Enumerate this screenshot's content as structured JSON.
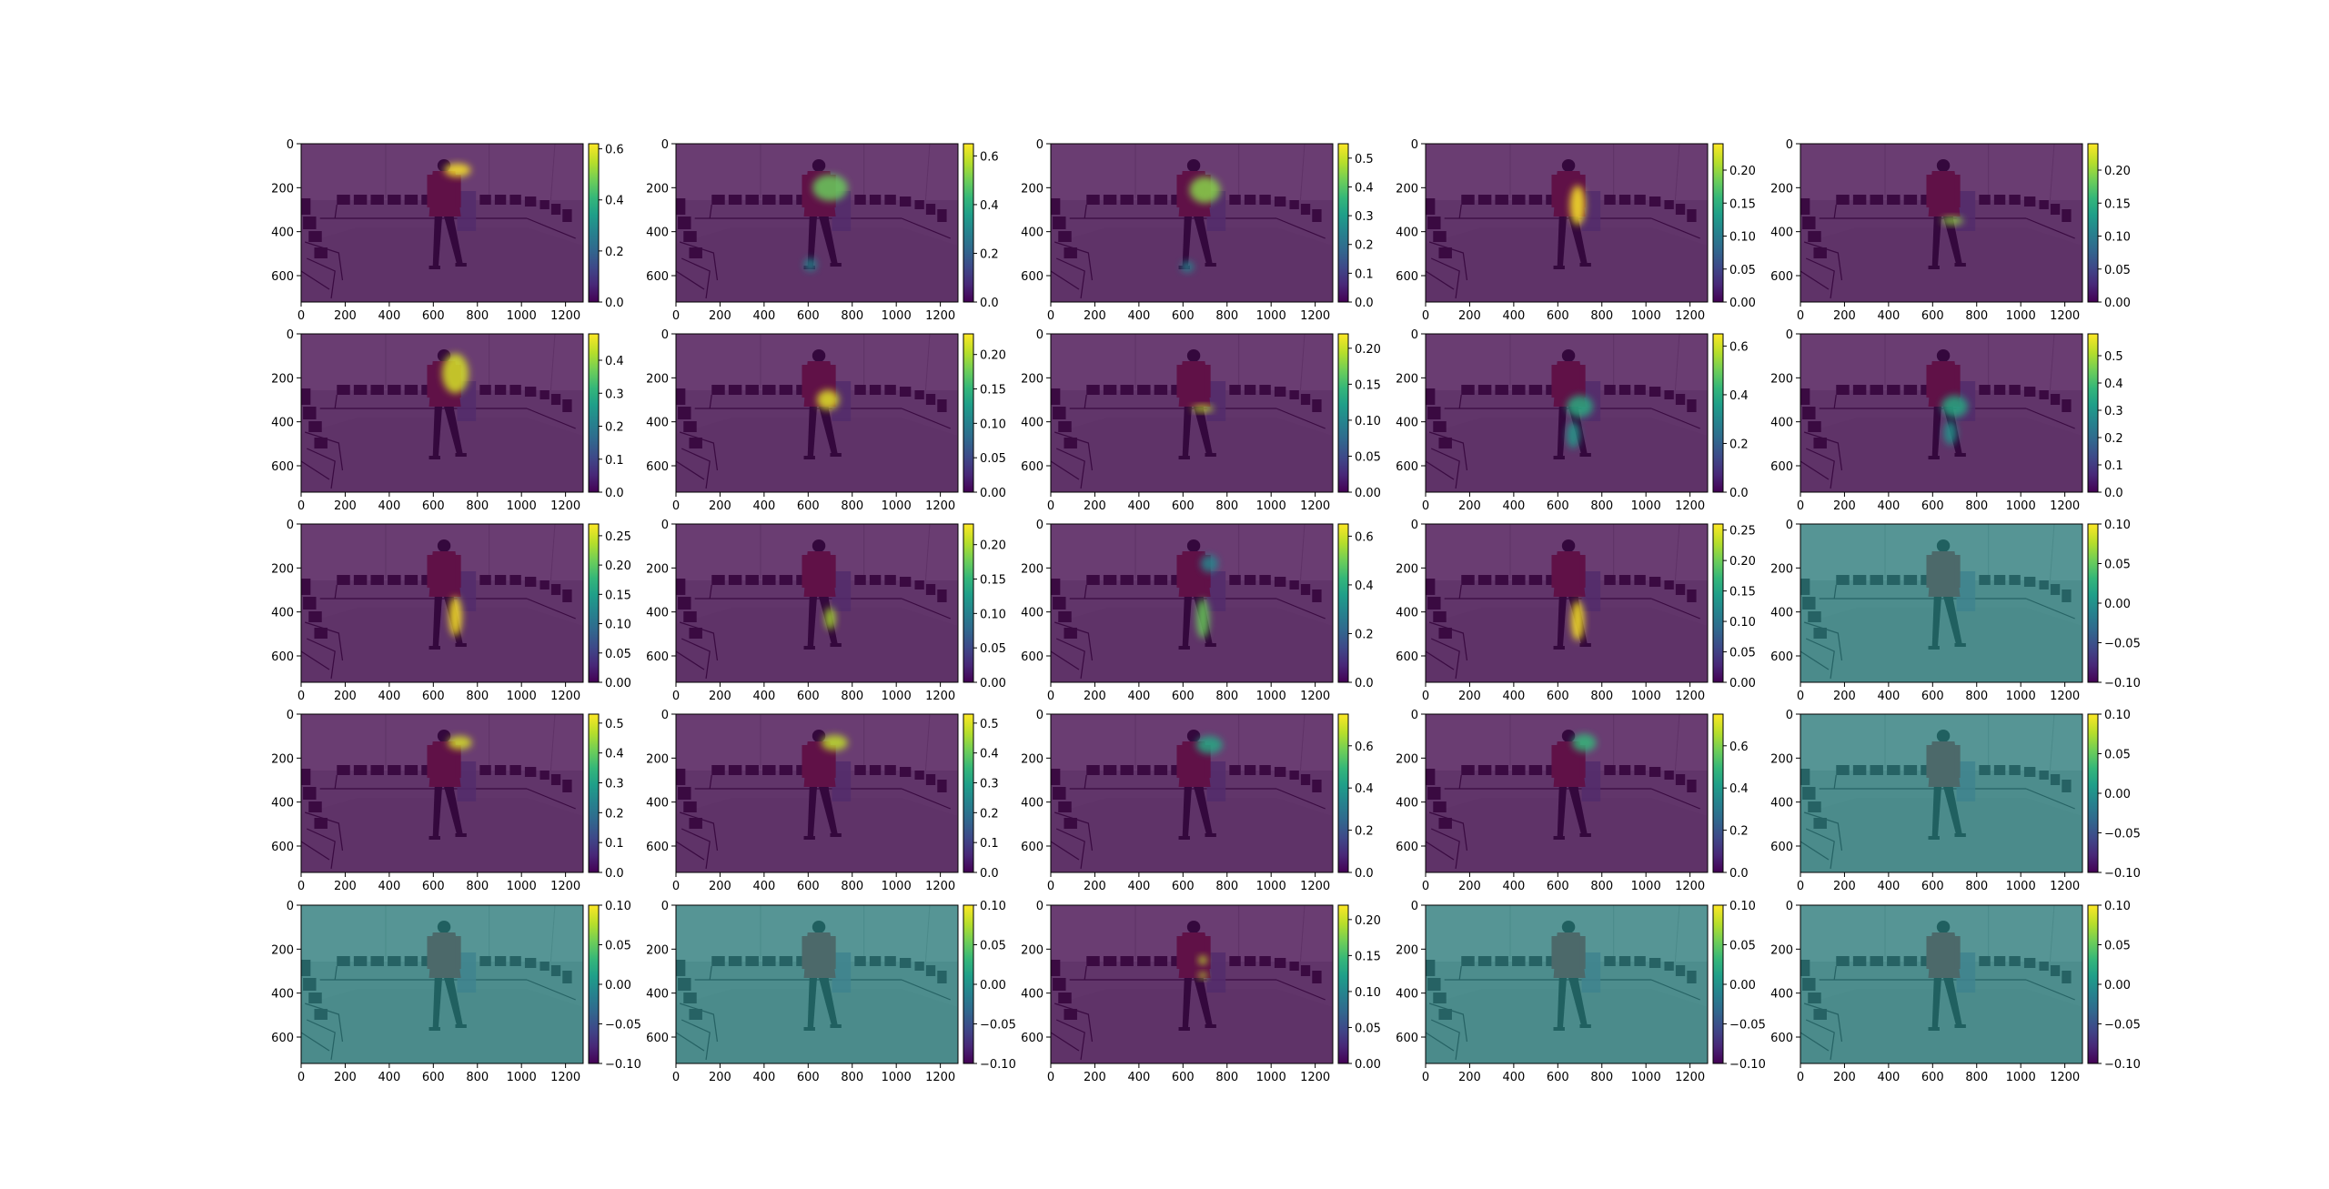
{
  "figure": {
    "layout": "5x5 grid of heatmap overlays on a photo (person walking in a room with chairs)",
    "colormap": "viridis",
    "viridis_stops": [
      "#440154",
      "#482878",
      "#3e4989",
      "#31688e",
      "#26828e",
      "#1f9e89",
      "#35b779",
      "#6ece58",
      "#b5de2b",
      "#fde725"
    ]
  },
  "chart_data": [
    {
      "type": "heatmap",
      "x_ticks": [
        "0",
        "200",
        "400",
        "600",
        "800",
        "1000",
        "1200"
      ],
      "y_ticks": [
        "0",
        "200",
        "400",
        "600"
      ],
      "xlim": [
        0,
        1280
      ],
      "ylim": [
        720,
        0
      ],
      "colorbar_ticks": [
        "0.0",
        "0.2",
        "0.4",
        "0.6"
      ],
      "colorbar_range": [
        0,
        0.62
      ],
      "blobs": [
        {
          "x": 710,
          "y": 120,
          "rx": 60,
          "ry": 30,
          "v": 0.62
        }
      ]
    },
    {
      "type": "heatmap",
      "x_ticks": [
        "0",
        "200",
        "400",
        "600",
        "800",
        "1000",
        "1200"
      ],
      "y_ticks": [
        "0",
        "200",
        "400",
        "600"
      ],
      "xlim": [
        0,
        1280
      ],
      "ylim": [
        720,
        0
      ],
      "colorbar_ticks": [
        "0.0",
        "0.2",
        "0.4",
        "0.6"
      ],
      "colorbar_range": [
        0,
        0.65
      ],
      "blobs": [
        {
          "x": 700,
          "y": 200,
          "rx": 80,
          "ry": 60,
          "v": 0.5
        },
        {
          "x": 610,
          "y": 550,
          "rx": 30,
          "ry": 30,
          "v": 0.3
        }
      ]
    },
    {
      "type": "heatmap",
      "x_ticks": [
        "0",
        "200",
        "400",
        "600",
        "800",
        "1000",
        "1200"
      ],
      "y_ticks": [
        "0",
        "200",
        "400",
        "600"
      ],
      "xlim": [
        0,
        1280
      ],
      "ylim": [
        720,
        0
      ],
      "colorbar_ticks": [
        "0.0",
        "0.1",
        "0.2",
        "0.3",
        "0.4",
        "0.5"
      ],
      "colorbar_range": [
        0,
        0.55
      ],
      "blobs": [
        {
          "x": 700,
          "y": 210,
          "rx": 70,
          "ry": 60,
          "v": 0.45
        },
        {
          "x": 620,
          "y": 560,
          "rx": 30,
          "ry": 25,
          "v": 0.25
        }
      ]
    },
    {
      "type": "heatmap",
      "x_ticks": [
        "0",
        "200",
        "400",
        "600",
        "800",
        "1000",
        "1200"
      ],
      "y_ticks": [
        "0",
        "200",
        "400",
        "600"
      ],
      "xlim": [
        0,
        1280
      ],
      "ylim": [
        720,
        0
      ],
      "colorbar_ticks": [
        "0.00",
        "0.05",
        "0.10",
        "0.15",
        "0.20"
      ],
      "colorbar_range": [
        0,
        0.24
      ],
      "blobs": [
        {
          "x": 690,
          "y": 280,
          "rx": 35,
          "ry": 90,
          "v": 0.24
        }
      ]
    },
    {
      "type": "heatmap",
      "x_ticks": [
        "0",
        "200",
        "400",
        "600",
        "800",
        "1000",
        "1200"
      ],
      "y_ticks": [
        "0",
        "200",
        "400",
        "600"
      ],
      "xlim": [
        0,
        1280
      ],
      "ylim": [
        720,
        0
      ],
      "colorbar_ticks": [
        "0.00",
        "0.05",
        "0.10",
        "0.15",
        "0.20"
      ],
      "colorbar_range": [
        0,
        0.24
      ],
      "blobs": [
        {
          "x": 690,
          "y": 350,
          "rx": 50,
          "ry": 18,
          "v": 0.2
        }
      ]
    },
    {
      "type": "heatmap",
      "x_ticks": [
        "0",
        "200",
        "400",
        "600",
        "800",
        "1000",
        "1200"
      ],
      "y_ticks": [
        "0",
        "200",
        "400",
        "600"
      ],
      "xlim": [
        0,
        1280
      ],
      "ylim": [
        720,
        0
      ],
      "colorbar_ticks": [
        "0.0",
        "0.1",
        "0.2",
        "0.3",
        "0.4"
      ],
      "colorbar_range": [
        0,
        0.48
      ],
      "blobs": [
        {
          "x": 700,
          "y": 180,
          "rx": 60,
          "ry": 90,
          "v": 0.45
        }
      ]
    },
    {
      "type": "heatmap",
      "x_ticks": [
        "0",
        "200",
        "400",
        "600",
        "800",
        "1000",
        "1200"
      ],
      "y_ticks": [
        "0",
        "200",
        "400",
        "600"
      ],
      "xlim": [
        0,
        1280
      ],
      "ylim": [
        720,
        0
      ],
      "colorbar_ticks": [
        "0.00",
        "0.05",
        "0.10",
        "0.15",
        "0.20"
      ],
      "colorbar_range": [
        0,
        0.23
      ],
      "blobs": [
        {
          "x": 690,
          "y": 300,
          "rx": 50,
          "ry": 45,
          "v": 0.22
        }
      ]
    },
    {
      "type": "heatmap",
      "x_ticks": [
        "0",
        "200",
        "400",
        "600",
        "800",
        "1000",
        "1200"
      ],
      "y_ticks": [
        "0",
        "200",
        "400",
        "600"
      ],
      "xlim": [
        0,
        1280
      ],
      "ylim": [
        720,
        0
      ],
      "colorbar_ticks": [
        "0.00",
        "0.05",
        "0.10",
        "0.15",
        "0.20"
      ],
      "colorbar_range": [
        0,
        0.22
      ],
      "blobs": [
        {
          "x": 690,
          "y": 340,
          "rx": 50,
          "ry": 15,
          "v": 0.2
        }
      ]
    },
    {
      "type": "heatmap",
      "x_ticks": [
        "0",
        "200",
        "400",
        "600",
        "800",
        "1000",
        "1200"
      ],
      "y_ticks": [
        "0",
        "200",
        "400",
        "600"
      ],
      "xlim": [
        0,
        1280
      ],
      "ylim": [
        720,
        0
      ],
      "colorbar_ticks": [
        "0.0",
        "0.2",
        "0.4",
        "0.6"
      ],
      "colorbar_range": [
        0,
        0.65
      ],
      "blobs": [
        {
          "x": 700,
          "y": 330,
          "rx": 60,
          "ry": 50,
          "v": 0.4
        },
        {
          "x": 670,
          "y": 460,
          "rx": 30,
          "ry": 60,
          "v": 0.35
        }
      ]
    },
    {
      "type": "heatmap",
      "x_ticks": [
        "0",
        "200",
        "400",
        "600",
        "800",
        "1000",
        "1200"
      ],
      "y_ticks": [
        "0",
        "200",
        "400",
        "600"
      ],
      "xlim": [
        0,
        1280
      ],
      "ylim": [
        720,
        0
      ],
      "colorbar_ticks": [
        "0.0",
        "0.1",
        "0.2",
        "0.3",
        "0.4",
        "0.5"
      ],
      "colorbar_range": [
        0,
        0.58
      ],
      "blobs": [
        {
          "x": 700,
          "y": 330,
          "rx": 60,
          "ry": 50,
          "v": 0.35
        },
        {
          "x": 680,
          "y": 450,
          "rx": 30,
          "ry": 55,
          "v": 0.3
        }
      ]
    },
    {
      "type": "heatmap",
      "x_ticks": [
        "0",
        "200",
        "400",
        "600",
        "800",
        "1000",
        "1200"
      ],
      "y_ticks": [
        "0",
        "200",
        "400",
        "600"
      ],
      "xlim": [
        0,
        1280
      ],
      "ylim": [
        720,
        0
      ],
      "colorbar_ticks": [
        "0.00",
        "0.05",
        "0.10",
        "0.15",
        "0.20",
        "0.25"
      ],
      "colorbar_range": [
        0,
        0.27
      ],
      "blobs": [
        {
          "x": 700,
          "y": 420,
          "rx": 30,
          "ry": 90,
          "v": 0.27
        }
      ]
    },
    {
      "type": "heatmap",
      "x_ticks": [
        "0",
        "200",
        "400",
        "600",
        "800",
        "1000",
        "1200"
      ],
      "y_ticks": [
        "0",
        "200",
        "400",
        "600"
      ],
      "xlim": [
        0,
        1280
      ],
      "ylim": [
        720,
        0
      ],
      "colorbar_ticks": [
        "0.00",
        "0.05",
        "0.10",
        "0.15",
        "0.20"
      ],
      "colorbar_range": [
        0,
        0.23
      ],
      "blobs": [
        {
          "x": 700,
          "y": 430,
          "rx": 25,
          "ry": 50,
          "v": 0.2
        }
      ]
    },
    {
      "type": "heatmap",
      "x_ticks": [
        "0",
        "200",
        "400",
        "600",
        "800",
        "1000",
        "1200"
      ],
      "y_ticks": [
        "0",
        "200",
        "400",
        "600"
      ],
      "xlim": [
        0,
        1280
      ],
      "ylim": [
        720,
        0
      ],
      "colorbar_ticks": [
        "0.0",
        "0.2",
        "0.4",
        "0.6"
      ],
      "colorbar_range": [
        0,
        0.65
      ],
      "blobs": [
        {
          "x": 720,
          "y": 180,
          "rx": 40,
          "ry": 40,
          "v": 0.3
        },
        {
          "x": 690,
          "y": 430,
          "rx": 30,
          "ry": 90,
          "v": 0.5
        }
      ]
    },
    {
      "type": "heatmap",
      "x_ticks": [
        "0",
        "200",
        "400",
        "600",
        "800",
        "1000",
        "1200"
      ],
      "y_ticks": [
        "0",
        "200",
        "400",
        "600"
      ],
      "xlim": [
        0,
        1280
      ],
      "ylim": [
        720,
        0
      ],
      "colorbar_ticks": [
        "0.00",
        "0.05",
        "0.10",
        "0.15",
        "0.20",
        "0.25"
      ],
      "colorbar_range": [
        0,
        0.26
      ],
      "blobs": [
        {
          "x": 690,
          "y": 440,
          "rx": 30,
          "ry": 90,
          "v": 0.26
        }
      ]
    },
    {
      "type": "heatmap",
      "x_ticks": [
        "0",
        "200",
        "400",
        "600",
        "800",
        "1000",
        "1200"
      ],
      "y_ticks": [
        "0",
        "200",
        "400",
        "600"
      ],
      "xlim": [
        0,
        1280
      ],
      "ylim": [
        720,
        0
      ],
      "colorbar_ticks": [
        "−0.10",
        "−0.05",
        "0.00",
        "0.05",
        "0.10"
      ],
      "colorbar_range": [
        -0.1,
        0.1
      ],
      "blobs": []
    },
    {
      "type": "heatmap",
      "x_ticks": [
        "0",
        "200",
        "400",
        "600",
        "800",
        "1000",
        "1200"
      ],
      "y_ticks": [
        "0",
        "200",
        "400",
        "600"
      ],
      "xlim": [
        0,
        1280
      ],
      "ylim": [
        720,
        0
      ],
      "colorbar_ticks": [
        "0.0",
        "0.1",
        "0.2",
        "0.3",
        "0.4",
        "0.5"
      ],
      "colorbar_range": [
        0,
        0.53
      ],
      "blobs": [
        {
          "x": 720,
          "y": 130,
          "rx": 55,
          "ry": 30,
          "v": 0.5
        }
      ]
    },
    {
      "type": "heatmap",
      "x_ticks": [
        "0",
        "200",
        "400",
        "600",
        "800",
        "1000",
        "1200"
      ],
      "y_ticks": [
        "0",
        "200",
        "400",
        "600"
      ],
      "xlim": [
        0,
        1280
      ],
      "ylim": [
        720,
        0
      ],
      "colorbar_ticks": [
        "0.0",
        "0.1",
        "0.2",
        "0.3",
        "0.4",
        "0.5"
      ],
      "colorbar_range": [
        0,
        0.53
      ],
      "blobs": [
        {
          "x": 720,
          "y": 130,
          "rx": 60,
          "ry": 35,
          "v": 0.48
        }
      ]
    },
    {
      "type": "heatmap",
      "x_ticks": [
        "0",
        "200",
        "400",
        "600",
        "800",
        "1000",
        "1200"
      ],
      "y_ticks": [
        "0",
        "200",
        "400",
        "600"
      ],
      "xlim": [
        0,
        1280
      ],
      "ylim": [
        720,
        0
      ],
      "colorbar_ticks": [
        "0.0",
        "0.2",
        "0.4",
        "0.6"
      ],
      "colorbar_range": [
        0,
        0.75
      ],
      "blobs": [
        {
          "x": 720,
          "y": 140,
          "rx": 60,
          "ry": 40,
          "v": 0.45
        }
      ]
    },
    {
      "type": "heatmap",
      "x_ticks": [
        "0",
        "200",
        "400",
        "600",
        "800",
        "1000",
        "1200"
      ],
      "y_ticks": [
        "0",
        "200",
        "400",
        "600"
      ],
      "xlim": [
        0,
        1280
      ],
      "ylim": [
        720,
        0
      ],
      "colorbar_ticks": [
        "0.0",
        "0.2",
        "0.4",
        "0.6"
      ],
      "colorbar_range": [
        0,
        0.75
      ],
      "blobs": [
        {
          "x": 720,
          "y": 130,
          "rx": 55,
          "ry": 40,
          "v": 0.5
        }
      ]
    },
    {
      "type": "heatmap",
      "x_ticks": [
        "0",
        "200",
        "400",
        "600",
        "800",
        "1000",
        "1200"
      ],
      "y_ticks": [
        "0",
        "200",
        "400",
        "600"
      ],
      "xlim": [
        0,
        1280
      ],
      "ylim": [
        720,
        0
      ],
      "colorbar_ticks": [
        "−0.10",
        "−0.05",
        "0.00",
        "0.05",
        "0.10"
      ],
      "colorbar_range": [
        -0.1,
        0.1
      ],
      "blobs": []
    },
    {
      "type": "heatmap",
      "x_ticks": [
        "0",
        "200",
        "400",
        "600",
        "800",
        "1000",
        "1200"
      ],
      "y_ticks": [
        "0",
        "200",
        "400",
        "600"
      ],
      "xlim": [
        0,
        1280
      ],
      "ylim": [
        720,
        0
      ],
      "colorbar_ticks": [
        "−0.10",
        "−0.05",
        "0.00",
        "0.05",
        "0.10"
      ],
      "colorbar_range": [
        -0.1,
        0.1
      ],
      "blobs": []
    },
    {
      "type": "heatmap",
      "x_ticks": [
        "0",
        "200",
        "400",
        "600",
        "800",
        "1000",
        "1200"
      ],
      "y_ticks": [
        "0",
        "200",
        "400",
        "600"
      ],
      "xlim": [
        0,
        1280
      ],
      "ylim": [
        720,
        0
      ],
      "colorbar_ticks": [
        "−0.10",
        "−0.05",
        "0.00",
        "0.05",
        "0.10"
      ],
      "colorbar_range": [
        -0.1,
        0.1
      ],
      "blobs": []
    },
    {
      "type": "heatmap",
      "x_ticks": [
        "0",
        "200",
        "400",
        "600",
        "800",
        "1000",
        "1200"
      ],
      "y_ticks": [
        "0",
        "200",
        "400",
        "600"
      ],
      "xlim": [
        0,
        1280
      ],
      "ylim": [
        720,
        0
      ],
      "colorbar_ticks": [
        "0.00",
        "0.05",
        "0.10",
        "0.15",
        "0.20"
      ],
      "colorbar_range": [
        0,
        0.22
      ],
      "blobs": [
        {
          "x": 690,
          "y": 250,
          "rx": 20,
          "ry": 20,
          "v": 0.2
        },
        {
          "x": 690,
          "y": 320,
          "rx": 20,
          "ry": 15,
          "v": 0.2
        }
      ]
    },
    {
      "type": "heatmap",
      "x_ticks": [
        "0",
        "200",
        "400",
        "600",
        "800",
        "1000",
        "1200"
      ],
      "y_ticks": [
        "0",
        "200",
        "400",
        "600"
      ],
      "xlim": [
        0,
        1280
      ],
      "ylim": [
        720,
        0
      ],
      "colorbar_ticks": [
        "−0.10",
        "−0.05",
        "0.00",
        "0.05",
        "0.10"
      ],
      "colorbar_range": [
        -0.1,
        0.1
      ],
      "blobs": []
    },
    {
      "type": "heatmap",
      "x_ticks": [
        "0",
        "200",
        "400",
        "600",
        "800",
        "1000",
        "1200"
      ],
      "y_ticks": [
        "0",
        "200",
        "400",
        "600"
      ],
      "xlim": [
        0,
        1280
      ],
      "ylim": [
        720,
        0
      ],
      "colorbar_ticks": [
        "−0.10",
        "−0.05",
        "0.00",
        "0.05",
        "0.10"
      ],
      "colorbar_range": [
        -0.1,
        0.1
      ],
      "blobs": []
    }
  ]
}
